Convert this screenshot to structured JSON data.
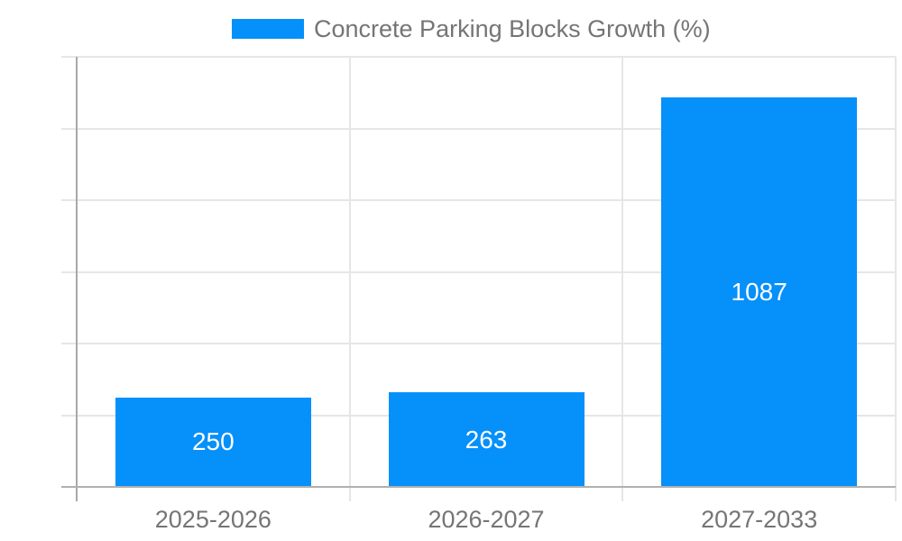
{
  "chart_data": {
    "type": "bar",
    "title": "Concrete Parking Blocks Growth (%)",
    "categories": [
      "2025-2026",
      "2026-2027",
      "2027-2033"
    ],
    "values": [
      250,
      263,
      1087
    ],
    "value_labels": [
      "250",
      "263",
      "1087"
    ],
    "xlabel": "",
    "ylabel": "",
    "ylim": [
      0,
      1200
    ],
    "yticks": [
      0,
      200,
      400,
      600,
      800,
      1000,
      1200
    ],
    "ytick_labels": [
      "0",
      "200",
      "400",
      "600",
      "800",
      "1000",
      "1200"
    ],
    "grid": true,
    "legend_position": "top",
    "legend_entries": [
      "Concrete Parking Blocks Growth (%)"
    ],
    "colors": {
      "bar": "#0690fa",
      "value_label_text": "#ffffff",
      "axis_text": "#757575",
      "gridline": "#e6e6e6",
      "axis_line": "#a8a8a8",
      "baseline": "#b0b0b0",
      "background": "#ffffff"
    }
  }
}
